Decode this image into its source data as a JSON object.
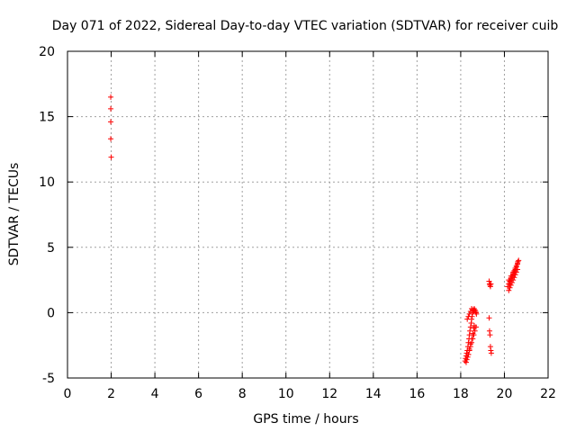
{
  "chart_data": {
    "type": "scatter",
    "title": "Day 071 of 2022, Sidereal Day-to-day VTEC variation (SDTVAR) for receiver cuib",
    "xlabel": "GPS time / hours",
    "ylabel": "SDTVAR / TECUs",
    "xlim": [
      0,
      22
    ],
    "ylim": [
      -5,
      20
    ],
    "xticks": [
      0,
      2,
      4,
      6,
      8,
      10,
      12,
      14,
      16,
      18,
      20,
      22
    ],
    "yticks": [
      -5,
      0,
      5,
      10,
      15,
      20
    ],
    "grid": true,
    "marker": "+",
    "color": "#ff0000",
    "series": [
      {
        "name": "SDTVAR",
        "x": [
          1.98,
          1.98,
          1.98,
          1.98,
          2.0,
          18.2,
          18.22,
          18.25,
          18.27,
          18.3,
          18.33,
          18.35,
          18.38,
          18.4,
          18.42,
          18.45,
          18.48,
          18.5,
          18.52,
          18.55,
          18.58,
          18.6,
          18.62,
          18.65,
          18.68,
          18.7,
          18.72,
          18.25,
          18.28,
          18.32,
          18.35,
          18.4,
          18.45,
          18.5,
          18.55,
          18.6,
          18.62,
          18.35,
          18.4,
          18.45,
          18.5,
          18.55,
          18.6,
          18.65,
          18.7,
          18.3,
          18.35,
          18.4,
          18.45,
          18.5,
          18.55,
          19.3,
          19.32,
          19.34,
          19.36,
          19.38,
          19.3,
          19.32,
          19.34,
          19.36,
          19.38,
          19.4,
          20.15,
          20.2,
          20.25,
          20.3,
          20.35,
          20.4,
          20.45,
          20.5,
          20.55,
          20.6,
          20.62,
          20.65,
          20.2,
          20.25,
          20.3,
          20.35,
          20.4,
          20.45,
          20.5,
          20.55,
          20.6,
          20.25,
          20.3,
          20.35,
          20.4,
          20.45,
          20.5,
          20.55,
          20.2,
          20.3,
          20.4,
          20.5,
          20.6
        ],
        "y": [
          16.5,
          15.6,
          14.6,
          13.3,
          11.9,
          -3.7,
          -3.5,
          -3.3,
          -3.1,
          -2.9,
          -2.6,
          -2.3,
          -2.0,
          -1.7,
          -1.4,
          -1.1,
          -0.8,
          -0.5,
          -0.3,
          0.0,
          0.1,
          0.2,
          0.3,
          0.2,
          0.1,
          0.0,
          -0.1,
          -3.8,
          -3.6,
          -3.4,
          -3.2,
          -2.8,
          -2.4,
          -2.0,
          -1.6,
          -1.2,
          -1.0,
          -3.2,
          -2.9,
          -2.6,
          -2.3,
          -2.0,
          -1.7,
          -1.4,
          -1.1,
          -0.5,
          -0.3,
          -0.1,
          0.1,
          0.3,
          0.2,
          2.4,
          2.2,
          2.1,
          2.0,
          2.2,
          -0.4,
          -1.4,
          -1.7,
          -2.6,
          -2.9,
          -3.1,
          2.0,
          2.2,
          2.4,
          2.6,
          2.8,
          3.0,
          3.2,
          3.4,
          3.6,
          3.8,
          3.9,
          4.0,
          1.7,
          1.9,
          2.1,
          2.3,
          2.5,
          2.7,
          2.9,
          3.1,
          3.3,
          2.3,
          2.5,
          2.7,
          2.9,
          3.1,
          3.3,
          3.5,
          2.5,
          2.8,
          3.1,
          3.4,
          3.7
        ]
      }
    ]
  }
}
